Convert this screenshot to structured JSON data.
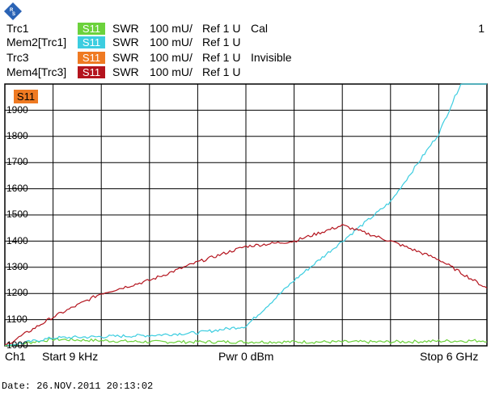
{
  "colors": {
    "trc1": "#6cd23c",
    "mem2": "#3ccde0",
    "trc3": "#ef7a22",
    "mem4": "#b4141e",
    "grid": "#000000"
  },
  "traces": [
    {
      "name": "Trc1",
      "badge": "S11",
      "color": "#6cd23c",
      "format": "SWR",
      "scale": "100 mU/",
      "ref": "Ref 1 U",
      "status": "Cal"
    },
    {
      "name": "Mem2[Trc1]",
      "badge": "S11",
      "color": "#3ccde0",
      "format": "SWR",
      "scale": "100 mU/",
      "ref": "Ref 1 U",
      "status": ""
    },
    {
      "name": "Trc3",
      "badge": "S11",
      "color": "#ef7a22",
      "format": "SWR",
      "scale": "100 mU/",
      "ref": "Ref 1 U",
      "status": "Invisible"
    },
    {
      "name": "Mem4[Trc3]",
      "badge": "S11",
      "color": "#b4141e",
      "format": "SWR",
      "scale": "100 mU/",
      "ref": "Ref 1 U",
      "status": ""
    }
  ],
  "channel_number": "1",
  "active_marker_label": "S11",
  "footer": {
    "channel": "Ch1",
    "start": "Start  9 kHz",
    "power": "Pwr  0 dBm",
    "stop": "Stop  6 GHz"
  },
  "date_line": "Date: 26.NOV.2011  20:13:02",
  "chart_data": {
    "type": "line",
    "y_tick_labels": [
      "1900",
      "1800",
      "1700",
      "1600",
      "1500",
      "1400",
      "1300",
      "1200",
      "1100",
      "1000"
    ],
    "ylim": [
      1000,
      2000
    ],
    "xlim": [
      0,
      10
    ],
    "grid": true,
    "series": [
      {
        "name": "Trc1",
        "color": "#6cd23c",
        "x": [
          0,
          1,
          2,
          3,
          4,
          5,
          6,
          7,
          8,
          9,
          10
        ],
        "y": [
          1000,
          1025,
          1020,
          1015,
          1015,
          1015,
          1015,
          1015,
          1015,
          1018,
          1020
        ]
      },
      {
        "name": "Mem2[Trc1]",
        "color": "#3ccde0",
        "x": [
          0,
          1,
          2,
          3,
          4,
          5,
          6,
          7,
          8,
          9,
          9.5,
          10
        ],
        "y": [
          1000,
          1030,
          1035,
          1040,
          1050,
          1075,
          1250,
          1400,
          1550,
          1810,
          2020,
          2020
        ]
      },
      {
        "name": "Mem4[Trc3]",
        "color": "#b4141e",
        "x": [
          0,
          1,
          2,
          3,
          4,
          5,
          6,
          7,
          8,
          9,
          10
        ],
        "y": [
          1000,
          1110,
          1200,
          1250,
          1320,
          1380,
          1400,
          1460,
          1400,
          1330,
          1220
        ]
      }
    ]
  }
}
